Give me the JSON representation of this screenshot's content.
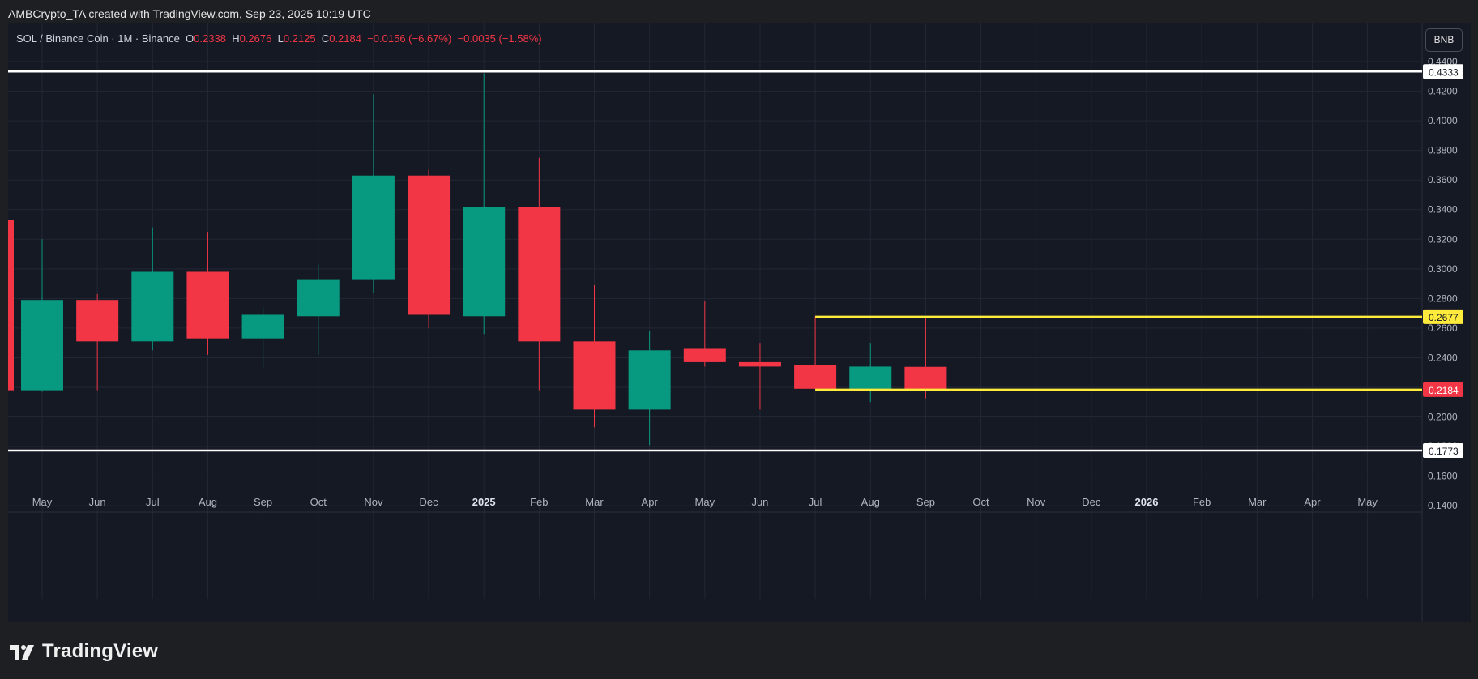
{
  "header": {
    "created_by": "AMBCrypto_TA created with TradingView.com, Sep 23, 2025 10:19 UTC"
  },
  "legend": {
    "symbol": "SOL / Binance Coin · 1M · Binance",
    "open_label": "O",
    "open_value": "0.2338",
    "high_label": "H",
    "high_value": "0.2676",
    "low_label": "L",
    "low_value": "0.2125",
    "close_label": "C",
    "close_value": "0.2184",
    "change": "−0.0156 (−6.67%)",
    "change2": "−0.0035 (−1.58%)"
  },
  "currency_button": "BNB",
  "footer": {
    "brand": "TradingView",
    "logo_icon": "tradingview-logo-icon"
  },
  "colors": {
    "background": "#151924",
    "up": "#089981",
    "down": "#f23645",
    "grid": "#232734",
    "axis_text": "#b2b5be",
    "resistance_line": "#ffffff",
    "range_line": "#ffeb3b"
  },
  "chart_data": {
    "type": "candlestick",
    "title": "SOL / Binance Coin · 1M · Binance",
    "timeframe": "1M",
    "y_axis": {
      "ylim": [
        0.129,
        0.454
      ],
      "ticks": [
        "0.4400",
        "0.4200",
        "0.4000",
        "0.3800",
        "0.3600",
        "0.3400",
        "0.3200",
        "0.3000",
        "0.2800",
        "0.2600",
        "0.2400",
        "0.2200",
        "0.2000",
        "0.1800",
        "0.1600",
        "0.1400"
      ],
      "side": "right"
    },
    "x_axis": {
      "labels": [
        "May",
        "Jun",
        "Jul",
        "Aug",
        "Sep",
        "Oct",
        "Nov",
        "Dec",
        "2025",
        "Feb",
        "Mar",
        "Apr",
        "May",
        "Jun",
        "Jul",
        "Aug",
        "Sep",
        "Oct",
        "Nov",
        "Dec",
        "2026",
        "Feb",
        "Mar",
        "Apr",
        "May"
      ],
      "bold_labels": [
        "2025",
        "2026"
      ]
    },
    "grid": true,
    "partial_candle": {
      "x": -1,
      "open": 0.333,
      "close": 0.218
    },
    "candles": [
      {
        "x": 0,
        "open": 0.218,
        "high": 0.32,
        "low": 0.217,
        "close": 0.279
      },
      {
        "x": 1,
        "open": 0.279,
        "high": 0.283,
        "low": 0.218,
        "close": 0.251
      },
      {
        "x": 2,
        "open": 0.251,
        "high": 0.328,
        "low": 0.245,
        "close": 0.298
      },
      {
        "x": 3,
        "open": 0.298,
        "high": 0.325,
        "low": 0.242,
        "close": 0.253
      },
      {
        "x": 4,
        "open": 0.253,
        "high": 0.274,
        "low": 0.233,
        "close": 0.269
      },
      {
        "x": 5,
        "open": 0.268,
        "high": 0.303,
        "low": 0.242,
        "close": 0.293
      },
      {
        "x": 6,
        "open": 0.293,
        "high": 0.418,
        "low": 0.284,
        "close": 0.363
      },
      {
        "x": 7,
        "open": 0.363,
        "high": 0.367,
        "low": 0.26,
        "close": 0.269
      },
      {
        "x": 8,
        "open": 0.268,
        "high": 0.432,
        "low": 0.256,
        "close": 0.342
      },
      {
        "x": 9,
        "open": 0.342,
        "high": 0.375,
        "low": 0.218,
        "close": 0.251
      },
      {
        "x": 10,
        "open": 0.251,
        "high": 0.289,
        "low": 0.193,
        "close": 0.205
      },
      {
        "x": 11,
        "open": 0.205,
        "high": 0.258,
        "low": 0.181,
        "close": 0.245
      },
      {
        "x": 12,
        "open": 0.246,
        "high": 0.278,
        "low": 0.234,
        "close": 0.237
      },
      {
        "x": 13,
        "open": 0.237,
        "high": 0.25,
        "low": 0.205,
        "close": 0.234
      },
      {
        "x": 14,
        "open": 0.235,
        "high": 0.268,
        "low": 0.219,
        "close": 0.219
      },
      {
        "x": 15,
        "open": 0.219,
        "high": 0.25,
        "low": 0.21,
        "close": 0.234
      },
      {
        "x": 16,
        "open": 0.2338,
        "high": 0.2676,
        "low": 0.2125,
        "close": 0.2184
      }
    ],
    "horizontal_lines": [
      {
        "value": 0.4333,
        "label": "0.4333",
        "color": "#ffffff",
        "start_x": null
      },
      {
        "value": 0.1773,
        "label": "0.1773",
        "color": "#ffffff",
        "start_x": null
      },
      {
        "value": 0.2677,
        "label": "0.2677",
        "color": "#ffeb3b",
        "start_x": 14
      },
      {
        "value": 0.2184,
        "label": "0.2184",
        "color": "#ffeb3b",
        "start_x": 14
      }
    ],
    "last_price": {
      "value": 0.2184,
      "label": "0.2184",
      "color": "#f23645"
    }
  }
}
